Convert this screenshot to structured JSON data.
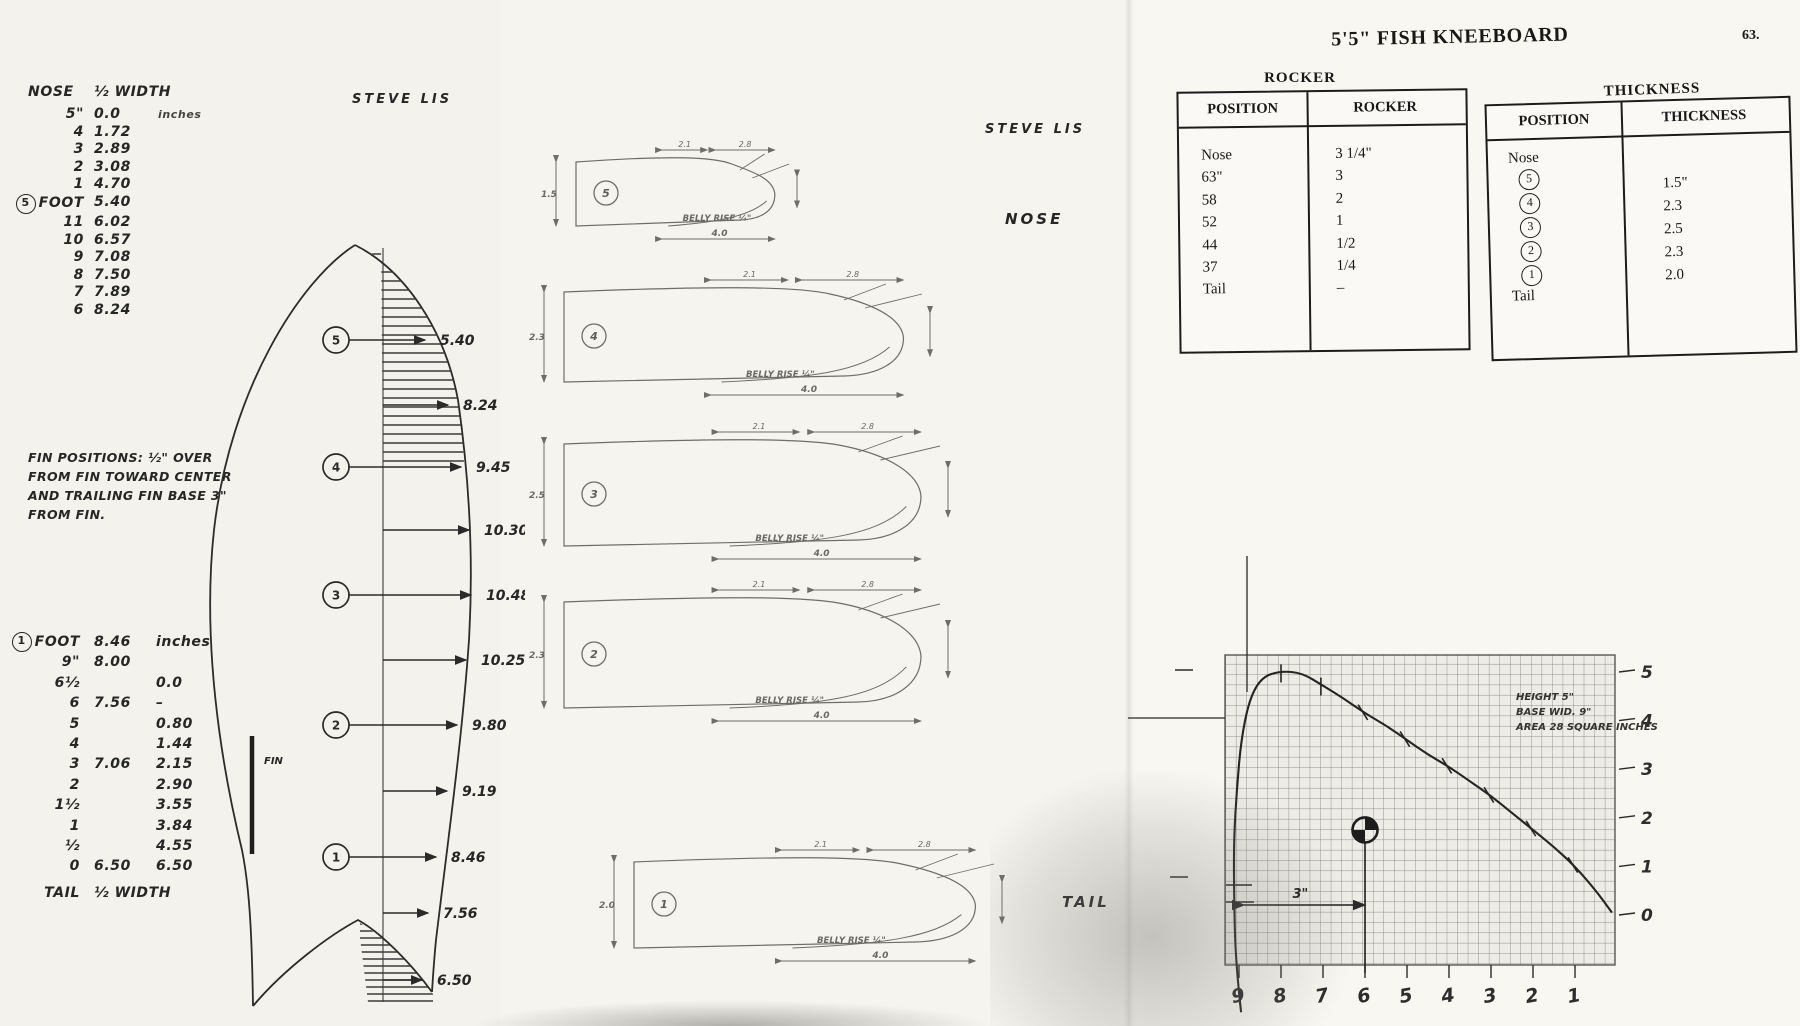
{
  "page": {
    "title": "5'5\" FISH KNEEBOARD",
    "page_number": "63.",
    "signature_left": "STEVE LIS",
    "signature_middle": "STEVE LIS",
    "nose_label": "NOSE",
    "tail_label": "TAIL"
  },
  "nose_table": {
    "header": [
      "NOSE",
      "½ WIDTH"
    ],
    "unit": "inches",
    "circled_row_index": 5,
    "circled_value": "5",
    "rows": [
      [
        "5\"",
        "0.0"
      ],
      [
        "4",
        "1.72"
      ],
      [
        "3",
        "2.89"
      ],
      [
        "2",
        "3.08"
      ],
      [
        "1",
        "4.70"
      ],
      [
        "FOOT",
        "5.40"
      ],
      [
        "11",
        "6.02"
      ],
      [
        "10",
        "6.57"
      ],
      [
        "9",
        "7.08"
      ],
      [
        "8",
        "7.50"
      ],
      [
        "7",
        "7.89"
      ],
      [
        "6",
        "8.24"
      ]
    ]
  },
  "fin_note": {
    "lines": [
      "FIN POSITIONS: ½\" OVER",
      "FROM FIN TOWARD CENTER",
      "AND TRAILING FIN BASE 3\"",
      "FROM FIN."
    ]
  },
  "tail_table": {
    "circled_value": "1",
    "unit": "inches",
    "rows": [
      [
        "FOOT",
        "8.46",
        "inches"
      ],
      [
        "9\"",
        "8.00",
        ""
      ],
      [
        "6½",
        "",
        "0.0"
      ],
      [
        "6",
        "7.56",
        "–"
      ],
      [
        "5",
        "",
        "0.80"
      ],
      [
        "4",
        "",
        "1.44"
      ],
      [
        "3",
        "7.06",
        "2.15"
      ],
      [
        "2",
        "",
        "2.90"
      ],
      [
        "1½",
        "",
        "3.55"
      ],
      [
        "1",
        "",
        "3.84"
      ],
      [
        "½",
        "",
        "4.55"
      ],
      [
        "0",
        "6.50",
        "6.50"
      ]
    ],
    "footer": [
      "TAIL",
      "½ WIDTH"
    ]
  },
  "outline": {
    "fin_label": "FIN",
    "stations": [
      {
        "circle": "5",
        "width": "5.40"
      },
      {
        "circle": "",
        "width": "8.24"
      },
      {
        "circle": "4",
        "width": "9.45"
      },
      {
        "circle": "",
        "width": "10.30"
      },
      {
        "circle": "3",
        "width": "10.48"
      },
      {
        "circle": "",
        "width": "10.25"
      },
      {
        "circle": "2",
        "width": "9.80"
      },
      {
        "circle": "",
        "width": "9.19"
      },
      {
        "circle": "1",
        "width": "8.46"
      },
      {
        "circle": "",
        "width": "7.56"
      },
      {
        "circle": "",
        "width": "6.50"
      }
    ]
  },
  "sections": {
    "shared": {
      "belly_rise": "BELLY RISE ¼\"",
      "bottom_width": "4.0",
      "top_dims": [
        "2.1",
        "2.8"
      ]
    },
    "items": [
      {
        "num": "5",
        "height": "1.5"
      },
      {
        "num": "4",
        "height": "2.3"
      },
      {
        "num": "3",
        "height": "2.5"
      },
      {
        "num": "2",
        "height": "2.3"
      },
      {
        "num": "1",
        "height": "2.0"
      }
    ]
  },
  "rocker_table": {
    "caption": "ROCKER",
    "headers": [
      "POSITION",
      "ROCKER"
    ],
    "rows": [
      [
        "Nose",
        "3 1/4\""
      ],
      [
        "63\"",
        "3"
      ],
      [
        "58",
        "2"
      ],
      [
        "52",
        "1"
      ],
      [
        "44",
        "1/2"
      ],
      [
        "37",
        "1/4"
      ],
      [
        "Tail",
        "–"
      ]
    ]
  },
  "thickness_table": {
    "caption": "THICKNESS",
    "headers": [
      "POSITION",
      "THICKNESS"
    ],
    "position_top": "Nose",
    "position_circles": [
      "5",
      "4",
      "3",
      "2",
      "1"
    ],
    "position_bottom": "Tail",
    "values": [
      "1.5\"",
      "2.3",
      "2.5",
      "2.3",
      "2.0"
    ]
  },
  "chart_data": {
    "type": "line",
    "description": "Keel fin template traced on grid paper (tail rocker / fin outline)",
    "x_ticks": [
      "9",
      "8",
      "7",
      "6",
      "5",
      "4",
      "3",
      "2",
      "1"
    ],
    "y_ticks": [
      "5",
      "4",
      "3",
      "2",
      "1",
      "0"
    ],
    "x_range": [
      0,
      9.3
    ],
    "y_range": [
      0,
      5.2
    ],
    "grid": true,
    "curve_points": [
      [
        8.95,
        -2.0
      ],
      [
        9.08,
        -1.0
      ],
      [
        9.12,
        0.5
      ],
      [
        9.12,
        1.6
      ],
      [
        9.05,
        2.6
      ],
      [
        8.95,
        3.6
      ],
      [
        8.75,
        4.45
      ],
      [
        8.45,
        4.9
      ],
      [
        8.0,
        5.02
      ],
      [
        7.5,
        4.98
      ],
      [
        7.0,
        4.72
      ],
      [
        6.5,
        4.45
      ],
      [
        6.0,
        4.15
      ],
      [
        5.5,
        3.9
      ],
      [
        5.0,
        3.6
      ],
      [
        4.5,
        3.3
      ],
      [
        4.0,
        3.05
      ],
      [
        3.5,
        2.75
      ],
      [
        3.0,
        2.45
      ],
      [
        2.5,
        2.1
      ],
      [
        2.0,
        1.75
      ],
      [
        1.5,
        1.4
      ],
      [
        1.0,
        1.0
      ],
      [
        0.5,
        0.5
      ],
      [
        0.12,
        0.05
      ]
    ],
    "curve_ticks": [
      [
        8.0,
        4.97
      ],
      [
        7.05,
        4.7
      ],
      [
        6.05,
        4.17
      ],
      [
        5.05,
        3.62
      ],
      [
        4.05,
        3.07
      ],
      [
        3.05,
        2.47
      ],
      [
        2.05,
        1.78
      ],
      [
        1.05,
        1.03
      ]
    ],
    "marker": {
      "x": 6.0,
      "y": 1.75,
      "symbol": "crossed-circle"
    },
    "base_dimension": {
      "label": "3\"",
      "from_x": 9,
      "to_x": 6
    },
    "annotations": [
      "HEIGHT 5\"",
      "BASE WID. 9\"",
      "AREA 28 SQUARE INCHES"
    ]
  }
}
